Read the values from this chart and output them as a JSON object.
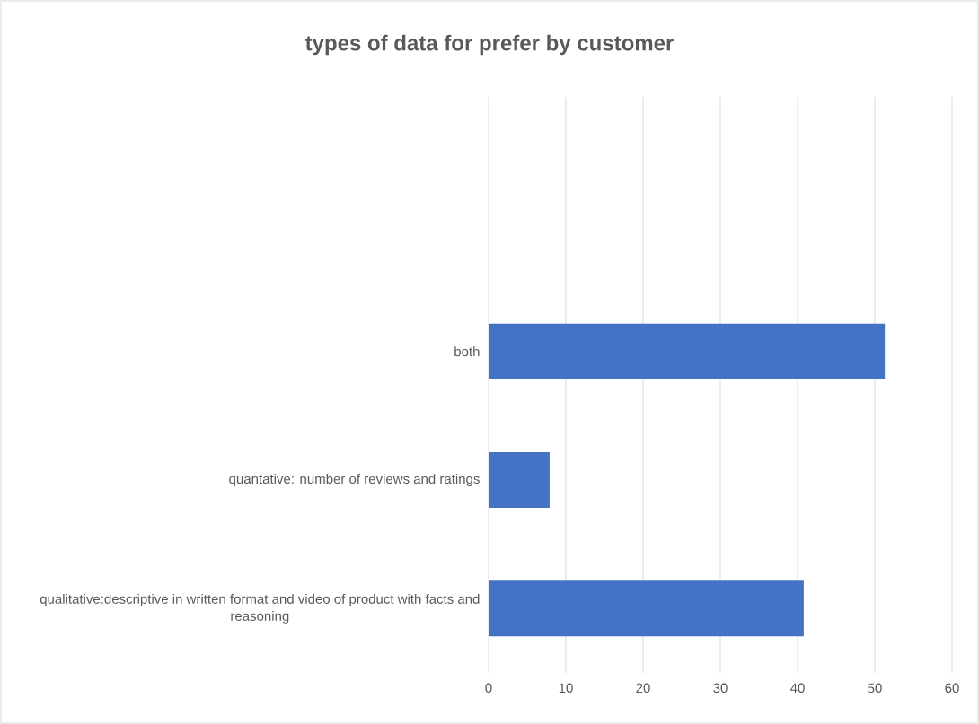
{
  "chart_data": {
    "type": "bar",
    "orientation": "horizontal",
    "title": "types of data for prefer by customer",
    "categories": [
      "both",
      "quantative: number of reviews and ratings",
      "qualitative:descriptive in written format and video of product with facts and reasoning"
    ],
    "values": [
      51.3,
      7.9,
      40.8
    ],
    "color": "#4472c4",
    "xlim": [
      0,
      60
    ],
    "xticks": [
      0,
      10,
      20,
      30,
      40,
      50,
      60
    ],
    "grid": "x"
  }
}
